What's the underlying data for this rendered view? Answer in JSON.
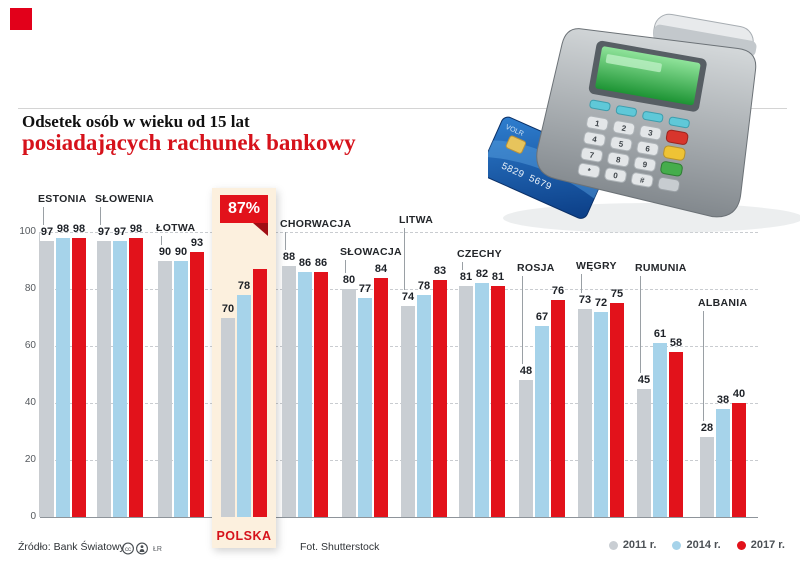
{
  "header": {
    "title_line1": "Odsetek osób w wieku od 15 lat",
    "title_line2": "posiadających rachunek bankowy"
  },
  "chart_data": {
    "type": "bar",
    "title": "Odsetek osób w wieku od 15 lat posiadających rachunek bankowy",
    "unit": "%",
    "ylim": [
      0,
      100
    ],
    "yticks": [
      100,
      80,
      60,
      40,
      20,
      0
    ],
    "grid": "dashed-horizontal",
    "legend_position": "bottom-right",
    "categories": [
      "ESTONIA",
      "SŁOWENIA",
      "ŁOTWA",
      "POLSKA",
      "CHORWACJA",
      "SŁOWACJA",
      "LITWA",
      "CZECHY",
      "ROSJA",
      "WĘGRY",
      "RUMUNIA",
      "ALBANIA"
    ],
    "series": [
      {
        "name": "2011 r.",
        "color": "#c9ced3",
        "values": [
          97,
          97,
          90,
          70,
          88,
          80,
          74,
          81,
          48,
          73,
          45,
          28
        ]
      },
      {
        "name": "2014 r.",
        "color": "#a6d3ea",
        "values": [
          98,
          97,
          90,
          78,
          86,
          77,
          78,
          82,
          67,
          72,
          61,
          38
        ]
      },
      {
        "name": "2017 r.",
        "color": "#e2121b",
        "values": [
          98,
          98,
          93,
          87,
          86,
          84,
          83,
          81,
          76,
          75,
          58,
          40
        ]
      }
    ],
    "highlight": {
      "category": "POLSKA",
      "callout": "87%",
      "label": "POLSKA"
    }
  },
  "footer": {
    "source": "Źródło: Bank Światowy",
    "license": "ŁR",
    "photo_credit": "Fot. Shutterstock",
    "legend": [
      {
        "label": "2011 r.",
        "color": "#c9ced3"
      },
      {
        "label": "2014 r.",
        "color": "#a6d3ea"
      },
      {
        "label": "2017 r.",
        "color": "#e2121b"
      }
    ]
  }
}
